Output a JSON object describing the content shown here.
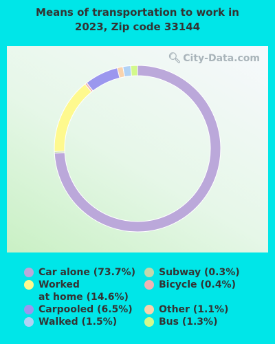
{
  "chart_data": {
    "type": "pie",
    "title_lines": [
      "Means of transportation to work in",
      "2023, Zip code 33144"
    ],
    "slices": [
      {
        "label": "Car alone (73.7%)",
        "value": 73.7,
        "color": "#bba8da"
      },
      {
        "label": "Subway (0.3%)",
        "value": 0.3,
        "color": "#c2d8ac"
      },
      {
        "label": "Bicycle (0.4%)",
        "value": 0.4,
        "color": "#f0b3b3"
      },
      {
        "label": "Worked at home (14.6%)",
        "value": 14.6,
        "color": "#fef98e"
      },
      {
        "label": "Carpooled (6.5%)",
        "value": 6.5,
        "color": "#9b97ee"
      },
      {
        "label": "Other (1.1%)",
        "value": 1.1,
        "color": "#f9d3ad"
      },
      {
        "label": "Walked (1.5%)",
        "value": 1.5,
        "color": "#b1d2f5"
      },
      {
        "label": "Bus (1.3%)",
        "value": 1.3,
        "color": "#d3f98c"
      }
    ],
    "ring_order": [
      "Car alone (73.7%)",
      "Subway (0.3%)",
      "Worked at home (14.6%)",
      "Bicycle (0.4%)",
      "Carpooled (6.5%)",
      "Other (1.1%)",
      "Walked (1.5%)",
      "Bus (1.3%)"
    ],
    "legend_columns": [
      [
        "Car alone (73.7%)",
        "Worked at home (14.6%)",
        "Carpooled (6.5%)",
        "Walked (1.5%)"
      ],
      [
        "Subway (0.3%)",
        "Bicycle (0.4%)",
        "Other (1.1%)",
        "Bus (1.3%)"
      ]
    ],
    "legend_lines": {
      "Worked at home (14.6%)": [
        "Worked",
        "at home (14.6%)"
      ]
    }
  },
  "watermark": {
    "text": "City-Data.com",
    "icon": "magnifier-icon"
  }
}
